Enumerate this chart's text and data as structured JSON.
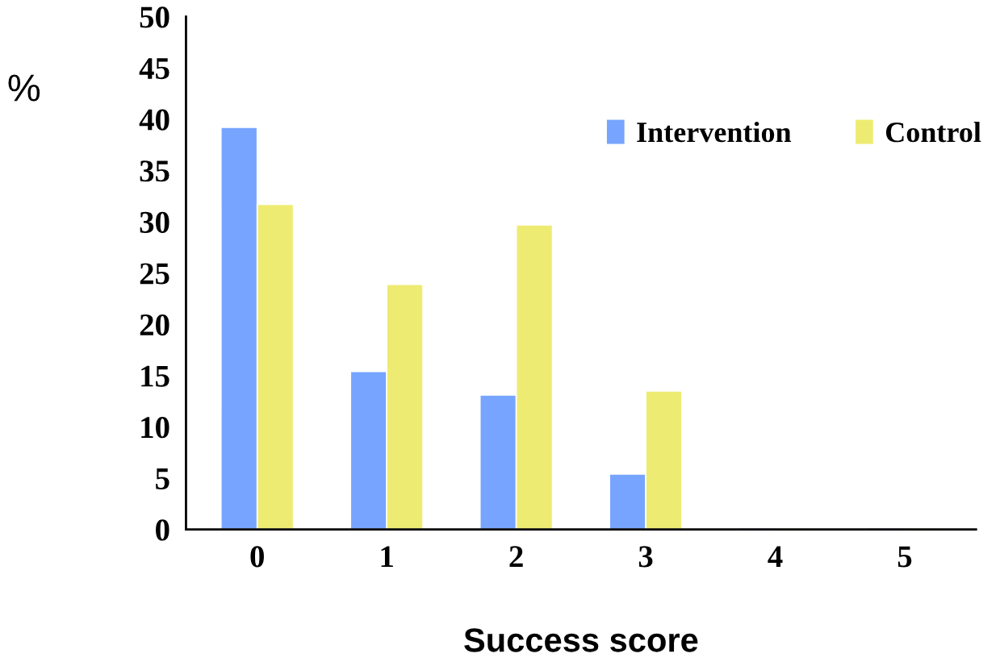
{
  "chart_data": {
    "type": "bar",
    "xlabel": "Success score",
    "ylabel": "%",
    "categories": [
      "0",
      "1",
      "2",
      "3",
      "4",
      "5"
    ],
    "series": [
      {
        "name": "Intervention",
        "color": "#77a4ff",
        "values": [
          39.2,
          15.4,
          13.1,
          5.4,
          0,
          0
        ]
      },
      {
        "name": "Control",
        "color": "#eeeb72",
        "values": [
          31.7,
          23.9,
          29.7,
          13.5,
          0,
          0
        ]
      }
    ],
    "ylim": [
      0,
      50
    ],
    "yticks": [
      0,
      5,
      10,
      15,
      20,
      25,
      30,
      35,
      40,
      45,
      50
    ],
    "grid": false,
    "legend": "top right"
  }
}
